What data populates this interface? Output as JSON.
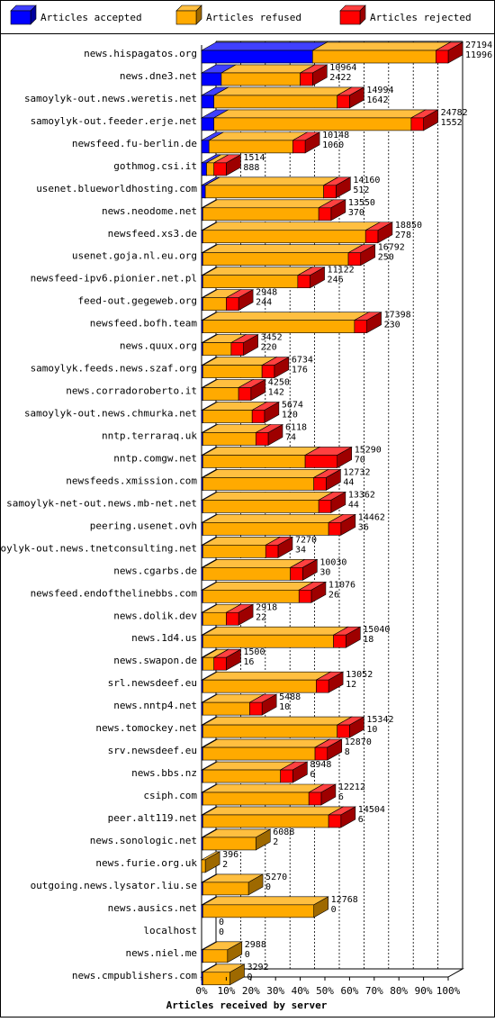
{
  "colors": {
    "accepted": "#0000ff",
    "refused": "#ffaa00",
    "rejected": "#ff0000",
    "background": "#ffffff",
    "frame": "#000000"
  },
  "legend": [
    {
      "label": "Articles accepted",
      "color": "#0000ff"
    },
    {
      "label": "Articles refused",
      "color": "#ffaa00"
    },
    {
      "label": "Articles rejected",
      "color": "#ff0000"
    }
  ],
  "chart_data": {
    "type": "bar",
    "orientation": "horizontal",
    "stacked": true,
    "xlabel": "Articles received by server",
    "ylabel": "",
    "xlim": [
      0,
      100
    ],
    "x_unit": "%",
    "xticks": [
      "0%",
      "10%",
      "20%",
      "30%",
      "40%",
      "50%",
      "60%",
      "70%",
      "80%",
      "90%",
      "100%"
    ],
    "legend_position": "top",
    "grid": true,
    "series_names": [
      "Articles accepted",
      "Articles refused",
      "Articles rejected"
    ],
    "rows": [
      {
        "server": "news.hispagatos.org",
        "total": 27194,
        "rejected_count": 11996,
        "accepted_pct": 45,
        "refused_pct": 50,
        "rejected_pct": 5
      },
      {
        "server": "news.dne3.net",
        "total": 10964,
        "rejected_count": 2422,
        "accepted_pct": 8,
        "refused_pct": 32,
        "rejected_pct": 5
      },
      {
        "server": "samoylyk-out.news.weretis.net",
        "total": 14994,
        "rejected_count": 1642,
        "accepted_pct": 5,
        "refused_pct": 50,
        "rejected_pct": 5
      },
      {
        "server": "samoylyk-out.feeder.erje.net",
        "total": 24782,
        "rejected_count": 1552,
        "accepted_pct": 5,
        "refused_pct": 80,
        "rejected_pct": 5
      },
      {
        "server": "newsfeed.fu-berlin.de",
        "total": 10148,
        "rejected_count": 1060,
        "accepted_pct": 3,
        "refused_pct": 34,
        "rejected_pct": 5
      },
      {
        "server": "gothmog.csi.it",
        "total": 1514,
        "rejected_count": 888,
        "accepted_pct": 2,
        "refused_pct": 3,
        "rejected_pct": 5
      },
      {
        "server": "usenet.blueworldhosting.com",
        "total": 14160,
        "rejected_count": 512,
        "accepted_pct": 1.5,
        "refused_pct": 48,
        "rejected_pct": 5
      },
      {
        "server": "news.neodome.net",
        "total": 13550,
        "rejected_count": 370,
        "accepted_pct": 0.5,
        "refused_pct": 47,
        "rejected_pct": 5
      },
      {
        "server": "newsfeed.xs3.de",
        "total": 18850,
        "rejected_count": 278,
        "accepted_pct": 0.5,
        "refused_pct": 66,
        "rejected_pct": 5
      },
      {
        "server": "usenet.goja.nl.eu.org",
        "total": 16792,
        "rejected_count": 250,
        "accepted_pct": 0.5,
        "refused_pct": 59,
        "rejected_pct": 5
      },
      {
        "server": "newsfeed-ipv6.pionier.net.pl",
        "total": 11122,
        "rejected_count": 246,
        "accepted_pct": 0.5,
        "refused_pct": 38.5,
        "rejected_pct": 5
      },
      {
        "server": "feed-out.gegeweb.org",
        "total": 2948,
        "rejected_count": 244,
        "accepted_pct": 0.5,
        "refused_pct": 9.5,
        "rejected_pct": 5
      },
      {
        "server": "newsfeed.bofh.team",
        "total": 17398,
        "rejected_count": 230,
        "accepted_pct": 0.5,
        "refused_pct": 61.5,
        "rejected_pct": 5
      },
      {
        "server": "news.quux.org",
        "total": 3452,
        "rejected_count": 220,
        "accepted_pct": 0.5,
        "refused_pct": 11.5,
        "rejected_pct": 5
      },
      {
        "server": "samoylyk.feeds.news.szaf.org",
        "total": 6734,
        "rejected_count": 176,
        "accepted_pct": 0.5,
        "refused_pct": 24,
        "rejected_pct": 5
      },
      {
        "server": "news.corradoroberto.it",
        "total": 4250,
        "rejected_count": 142,
        "accepted_pct": 0.5,
        "refused_pct": 14.5,
        "rejected_pct": 5
      },
      {
        "server": "samoylyk-out.news.chmurka.net",
        "total": 5674,
        "rejected_count": 120,
        "accepted_pct": 0.5,
        "refused_pct": 20,
        "rejected_pct": 5
      },
      {
        "server": "nntp.terraraq.uk",
        "total": 6118,
        "rejected_count": 74,
        "accepted_pct": 0.5,
        "refused_pct": 21.5,
        "rejected_pct": 5
      },
      {
        "server": "nntp.comgw.net",
        "total": 15290,
        "rejected_count": 70,
        "accepted_pct": 0.5,
        "refused_pct": 41.5,
        "rejected_pct": 13
      },
      {
        "server": "newsfeeds.xmission.com",
        "total": 12732,
        "rejected_count": 44,
        "accepted_pct": 0.5,
        "refused_pct": 45,
        "rejected_pct": 5
      },
      {
        "server": "samoylyk-net-out.news.mb-net.net",
        "total": 13362,
        "rejected_count": 44,
        "accepted_pct": 0.5,
        "refused_pct": 47,
        "rejected_pct": 5
      },
      {
        "server": "peering.usenet.ovh",
        "total": 14462,
        "rejected_count": 36,
        "accepted_pct": 0.5,
        "refused_pct": 51,
        "rejected_pct": 5
      },
      {
        "server": "samoylyk-out.news.tnetconsulting.net",
        "total": 7270,
        "rejected_count": 34,
        "accepted_pct": 0.5,
        "refused_pct": 25.5,
        "rejected_pct": 5
      },
      {
        "server": "news.cgarbs.de",
        "total": 10030,
        "rejected_count": 30,
        "accepted_pct": 0.5,
        "refused_pct": 35.5,
        "rejected_pct": 5
      },
      {
        "server": "newsfeed.endofthelinebbs.com",
        "total": 11076,
        "rejected_count": 26,
        "accepted_pct": 0.5,
        "refused_pct": 39,
        "rejected_pct": 5
      },
      {
        "server": "news.dolik.dev",
        "total": 2918,
        "rejected_count": 22,
        "accepted_pct": 0.5,
        "refused_pct": 9.5,
        "rejected_pct": 5
      },
      {
        "server": "news.1d4.us",
        "total": 15040,
        "rejected_count": 18,
        "accepted_pct": 0.5,
        "refused_pct": 53,
        "rejected_pct": 5
      },
      {
        "server": "news.swapon.de",
        "total": 1500,
        "rejected_count": 16,
        "accepted_pct": 0.5,
        "refused_pct": 4.5,
        "rejected_pct": 5
      },
      {
        "server": "srl.newsdeef.eu",
        "total": 13052,
        "rejected_count": 12,
        "accepted_pct": 0.5,
        "refused_pct": 46,
        "rejected_pct": 5
      },
      {
        "server": "news.nntp4.net",
        "total": 5488,
        "rejected_count": 10,
        "accepted_pct": 0.5,
        "refused_pct": 19,
        "rejected_pct": 5
      },
      {
        "server": "news.tomockey.net",
        "total": 15342,
        "rejected_count": 10,
        "accepted_pct": 0.5,
        "refused_pct": 54.5,
        "rejected_pct": 5
      },
      {
        "server": "srv.newsdeef.eu",
        "total": 12870,
        "rejected_count": 8,
        "accepted_pct": 0.5,
        "refused_pct": 45.5,
        "rejected_pct": 5
      },
      {
        "server": "news.bbs.nz",
        "total": 8948,
        "rejected_count": 6,
        "accepted_pct": 0.5,
        "refused_pct": 31.5,
        "rejected_pct": 5
      },
      {
        "server": "csiph.com",
        "total": 12212,
        "rejected_count": 6,
        "accepted_pct": 0.5,
        "refused_pct": 43,
        "rejected_pct": 5
      },
      {
        "server": "peer.alt119.net",
        "total": 14504,
        "rejected_count": 6,
        "accepted_pct": 0.5,
        "refused_pct": 51,
        "rejected_pct": 5
      },
      {
        "server": "news.sonologic.net",
        "total": 6088,
        "rejected_count": 2,
        "accepted_pct": 0.5,
        "refused_pct": 21.5,
        "rejected_pct": 0
      },
      {
        "server": "news.furie.org.uk",
        "total": 396,
        "rejected_count": 2,
        "accepted_pct": 0,
        "refused_pct": 1.5,
        "rejected_pct": 0
      },
      {
        "server": "outgoing.news.lysator.liu.se",
        "total": 5270,
        "rejected_count": 0,
        "accepted_pct": 0.5,
        "refused_pct": 18.5,
        "rejected_pct": 0
      },
      {
        "server": "news.ausics.net",
        "total": 12768,
        "rejected_count": 0,
        "accepted_pct": 0.5,
        "refused_pct": 45,
        "rejected_pct": 0
      },
      {
        "server": "localhost",
        "total": 0,
        "rejected_count": 0,
        "accepted_pct": 0,
        "refused_pct": 0,
        "rejected_pct": 0
      },
      {
        "server": "news.niel.me",
        "total": 2988,
        "rejected_count": 0,
        "accepted_pct": 0.5,
        "refused_pct": 10,
        "rejected_pct": 0
      },
      {
        "server": "news.cmpublishers.com",
        "total": 3292,
        "rejected_count": 0,
        "accepted_pct": 0.5,
        "refused_pct": 11,
        "rejected_pct": 0
      }
    ]
  }
}
